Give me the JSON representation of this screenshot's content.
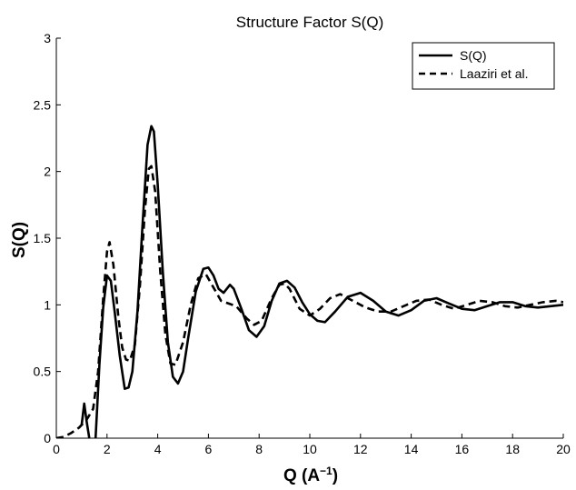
{
  "chart_data": {
    "type": "line",
    "title": "Structure Factor S(Q)",
    "xlabel": {
      "main": "Q  (A",
      "sup": "−1",
      "end": ")"
    },
    "ylabel": "S(Q)",
    "xlim": [
      0,
      20
    ],
    "ylim": [
      0,
      3
    ],
    "xticks": [
      0,
      2,
      4,
      6,
      8,
      10,
      12,
      14,
      16,
      18,
      20
    ],
    "yticks": [
      0,
      0.5,
      1,
      1.5,
      2,
      2.5,
      3
    ],
    "grid": false,
    "legend_position": "top-right",
    "series": [
      {
        "name": "S(Q)",
        "style": "solid",
        "color": "#000000",
        "points": [
          [
            1.0,
            0.1
          ],
          [
            1.1,
            0.26
          ],
          [
            1.2,
            0.12
          ],
          [
            1.3,
            0.0
          ],
          [
            1.35,
            -0.05
          ],
          [
            1.5,
            -0.1
          ],
          [
            1.55,
            0.0
          ],
          [
            1.7,
            0.55
          ],
          [
            1.85,
            0.98
          ],
          [
            2.0,
            1.22
          ],
          [
            2.15,
            1.18
          ],
          [
            2.3,
            0.95
          ],
          [
            2.5,
            0.62
          ],
          [
            2.7,
            0.37
          ],
          [
            2.85,
            0.38
          ],
          [
            3.0,
            0.5
          ],
          [
            3.2,
            0.95
          ],
          [
            3.4,
            1.6
          ],
          [
            3.6,
            2.2
          ],
          [
            3.75,
            2.34
          ],
          [
            3.85,
            2.3
          ],
          [
            4.0,
            1.9
          ],
          [
            4.2,
            1.25
          ],
          [
            4.4,
            0.72
          ],
          [
            4.6,
            0.46
          ],
          [
            4.8,
            0.41
          ],
          [
            5.0,
            0.5
          ],
          [
            5.2,
            0.75
          ],
          [
            5.5,
            1.1
          ],
          [
            5.8,
            1.27
          ],
          [
            6.0,
            1.28
          ],
          [
            6.2,
            1.22
          ],
          [
            6.4,
            1.12
          ],
          [
            6.6,
            1.09
          ],
          [
            6.85,
            1.15
          ],
          [
            7.0,
            1.12
          ],
          [
            7.3,
            0.97
          ],
          [
            7.6,
            0.81
          ],
          [
            7.9,
            0.76
          ],
          [
            8.2,
            0.84
          ],
          [
            8.5,
            1.03
          ],
          [
            8.8,
            1.16
          ],
          [
            9.1,
            1.18
          ],
          [
            9.4,
            1.13
          ],
          [
            9.7,
            1.02
          ],
          [
            10.0,
            0.93
          ],
          [
            10.3,
            0.88
          ],
          [
            10.6,
            0.87
          ],
          [
            11.0,
            0.95
          ],
          [
            11.5,
            1.06
          ],
          [
            12.0,
            1.09
          ],
          [
            12.5,
            1.03
          ],
          [
            13.0,
            0.95
          ],
          [
            13.5,
            0.92
          ],
          [
            14.0,
            0.96
          ],
          [
            14.5,
            1.03
          ],
          [
            15.0,
            1.05
          ],
          [
            15.5,
            1.01
          ],
          [
            16.0,
            0.97
          ],
          [
            16.5,
            0.96
          ],
          [
            17.0,
            0.99
          ],
          [
            17.5,
            1.02
          ],
          [
            18.0,
            1.02
          ],
          [
            18.5,
            0.99
          ],
          [
            19.0,
            0.98
          ],
          [
            19.5,
            0.99
          ],
          [
            20.0,
            1.0
          ]
        ]
      },
      {
        "name": "Laaziri et al.",
        "style": "dashed",
        "color": "#000000",
        "points": [
          [
            0.0,
            0.0
          ],
          [
            0.3,
            0.01
          ],
          [
            0.6,
            0.04
          ],
          [
            0.9,
            0.08
          ],
          [
            1.2,
            0.14
          ],
          [
            1.45,
            0.22
          ],
          [
            1.65,
            0.5
          ],
          [
            1.85,
            1.05
          ],
          [
            2.0,
            1.4
          ],
          [
            2.1,
            1.47
          ],
          [
            2.25,
            1.3
          ],
          [
            2.45,
            0.9
          ],
          [
            2.6,
            0.68
          ],
          [
            2.75,
            0.59
          ],
          [
            2.9,
            0.58
          ],
          [
            3.1,
            0.7
          ],
          [
            3.3,
            1.15
          ],
          [
            3.5,
            1.72
          ],
          [
            3.65,
            2.02
          ],
          [
            3.75,
            2.04
          ],
          [
            3.9,
            1.85
          ],
          [
            4.1,
            1.25
          ],
          [
            4.3,
            0.78
          ],
          [
            4.5,
            0.56
          ],
          [
            4.7,
            0.55
          ],
          [
            5.0,
            0.72
          ],
          [
            5.3,
            1.0
          ],
          [
            5.6,
            1.2
          ],
          [
            5.9,
            1.23
          ],
          [
            6.2,
            1.13
          ],
          [
            6.5,
            1.03
          ],
          [
            6.8,
            1.01
          ],
          [
            7.1,
            0.99
          ],
          [
            7.5,
            0.9
          ],
          [
            7.8,
            0.85
          ],
          [
            8.1,
            0.88
          ],
          [
            8.5,
            1.05
          ],
          [
            8.8,
            1.15
          ],
          [
            9.0,
            1.16
          ],
          [
            9.2,
            1.12
          ],
          [
            9.6,
            0.97
          ],
          [
            10.0,
            0.92
          ],
          [
            10.4,
            0.97
          ],
          [
            10.8,
            1.05
          ],
          [
            11.2,
            1.08
          ],
          [
            11.7,
            1.03
          ],
          [
            12.2,
            0.98
          ],
          [
            12.7,
            0.95
          ],
          [
            13.2,
            0.95
          ],
          [
            13.7,
            0.99
          ],
          [
            14.2,
            1.03
          ],
          [
            14.7,
            1.04
          ],
          [
            15.2,
            1.0
          ],
          [
            15.7,
            0.97
          ],
          [
            16.2,
            1.0
          ],
          [
            16.7,
            1.03
          ],
          [
            17.2,
            1.02
          ],
          [
            17.7,
            0.99
          ],
          [
            18.2,
            0.98
          ],
          [
            18.7,
            1.0
          ],
          [
            19.2,
            1.02
          ],
          [
            19.7,
            1.03
          ],
          [
            20.0,
            1.02
          ]
        ]
      }
    ]
  }
}
